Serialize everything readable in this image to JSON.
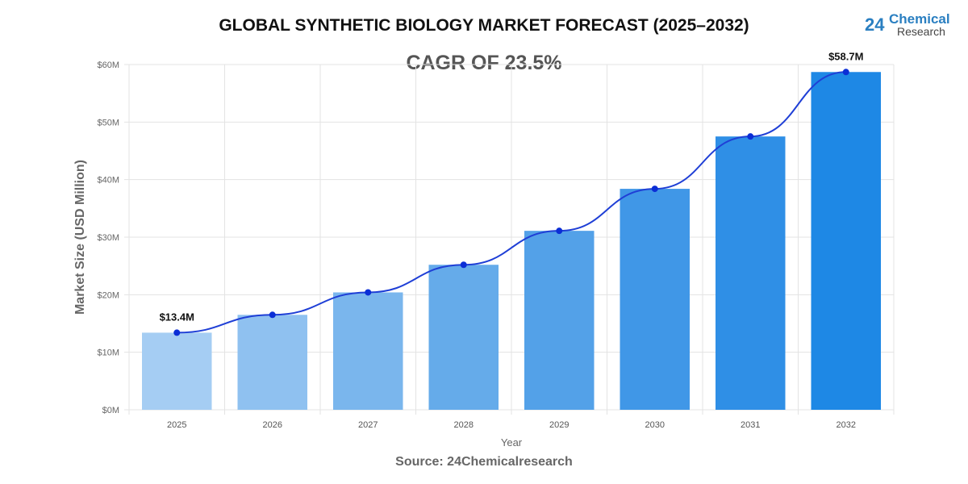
{
  "chart_data": {
    "type": "bar",
    "title": "GLOBAL SYNTHETIC BIOLOGY MARKET FORECAST (2025–2032)",
    "subtitle": "CAGR OF 23.5%",
    "xlabel": "Year",
    "ylabel": "Market Size (USD Million)",
    "source": "Source: 24Chemicalresearch",
    "categories": [
      "2025",
      "2026",
      "2027",
      "2028",
      "2029",
      "2030",
      "2031",
      "2032"
    ],
    "values": [
      13.4,
      16.5,
      20.4,
      25.2,
      31.1,
      38.4,
      47.5,
      58.7
    ],
    "trend_line": true,
    "data_labels": [
      {
        "index": 0,
        "text": "$13.4M"
      },
      {
        "index": 7,
        "text": "$58.7M"
      }
    ],
    "yticks": [
      "$0M",
      "$10M",
      "$20M",
      "$30M",
      "$40M",
      "$50M",
      "$60M"
    ],
    "ylim": [
      0,
      60
    ],
    "grid": true,
    "bar_colors": [
      "#a5cdf3",
      "#8fc1f0",
      "#7ab6ed",
      "#65abea",
      "#53a1e8",
      "#4097e7",
      "#2f8fe6",
      "#1e88e5"
    ],
    "line_color": "#1f3fd6"
  },
  "logo": {
    "number": "24",
    "line1": "Chemical",
    "line2": "Research"
  }
}
